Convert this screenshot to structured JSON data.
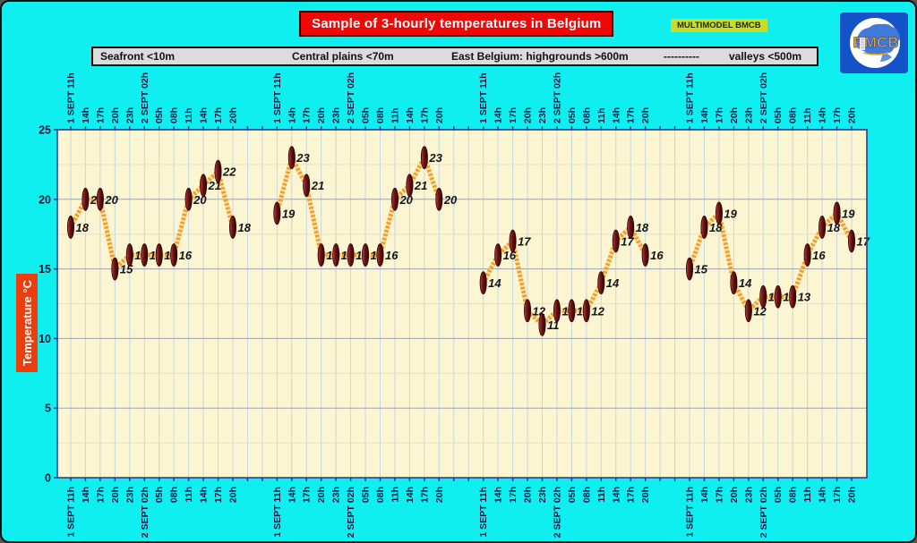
{
  "header": {
    "title": "Sample of 3-hourly temperatures in Belgium",
    "badge": "MULTIMODEL BMCB",
    "logo_text": "BMCB"
  },
  "legend": {
    "items": [
      "Seafront <10m",
      "Central plains <70m",
      "East Belgium: highgrounds >600m",
      "----------",
      "valleys <500m"
    ]
  },
  "axis": {
    "y_label": "Temperature  °C"
  },
  "colors": {
    "background": "#10EFEF",
    "plot_background": "#FCF5D2",
    "title_bg": "#F00808",
    "ylabel_bg": "#EE3D0C",
    "badge_bg": "#C8DC28",
    "legend_bg": "#DCDCDC",
    "frame": "#2B3F92",
    "marker": "#6E1111",
    "line": "#EF9B22"
  },
  "chart_data": {
    "type": "line",
    "title": "Sample of 3-hourly temperatures in Belgium",
    "ylabel": "Temperature °C",
    "ylim": [
      0,
      25
    ],
    "yticks": [
      0,
      5,
      10,
      15,
      20,
      25
    ],
    "minor_y_step": 2.5,
    "grid": true,
    "x_labels": [
      "1 SEPT 11h",
      "14h",
      "17h",
      "20h",
      "23h",
      "2 SEPT 02h",
      "05h",
      "08h",
      "11h",
      "14h",
      "17h",
      "20h"
    ],
    "series": [
      {
        "name": "Seafront <10m",
        "values": [
          18,
          20,
          20,
          15,
          16,
          16,
          16,
          16,
          20,
          21,
          22,
          18
        ]
      },
      {
        "name": "Central plains <70m",
        "values": [
          19,
          23,
          21,
          16,
          16,
          16,
          16,
          16,
          20,
          21,
          23,
          20
        ]
      },
      {
        "name": "East Belgium: highgrounds >600m",
        "values": [
          14,
          16,
          17,
          12,
          11,
          12,
          12,
          12,
          14,
          17,
          18,
          16
        ]
      },
      {
        "name": "valleys <500m",
        "values": [
          15,
          18,
          19,
          14,
          12,
          13,
          13,
          13,
          16,
          18,
          19,
          17
        ]
      }
    ],
    "point_labels_shown": true,
    "legend_position": "top"
  }
}
